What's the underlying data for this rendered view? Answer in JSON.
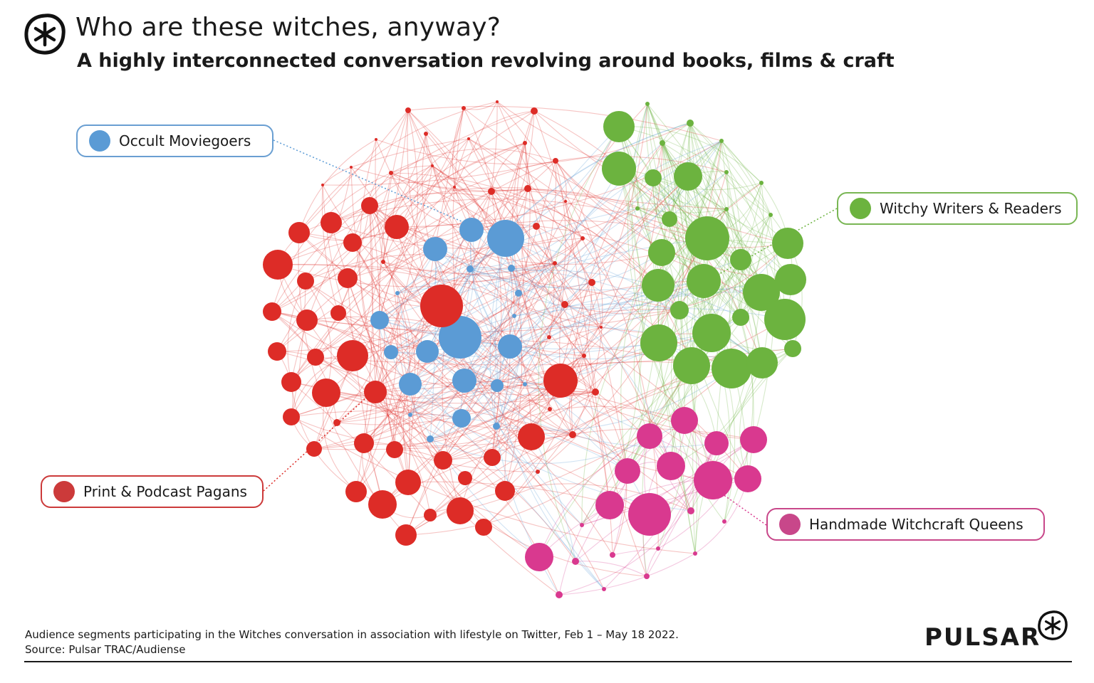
{
  "header": {
    "title": "Who are these witches, anyway?",
    "subtitle": "A highly interconnected conversation revolving around books, films & craft",
    "logo_icon": "pulsar-asterisk-icon"
  },
  "segments": [
    {
      "key": "blue",
      "label": "Occult Moviegoers",
      "color": "#5b9bd5"
    },
    {
      "key": "green",
      "label": "Witchy Writers & Readers",
      "color": "#6cb33f"
    },
    {
      "key": "red",
      "label": "Print & Podcast Pagans",
      "color": "#dd2c27"
    },
    {
      "key": "pink",
      "label": "Handmade Witchcraft Queens",
      "color": "#d9398f"
    }
  ],
  "footer": {
    "note": "Audience segments participating in the Witches conversation in association with lifestyle on Twitter, Feb 1  – May 18 2022.",
    "source": "Source: Pulsar TRAC/Audiense"
  },
  "brand": {
    "name": "PULSAR",
    "icon": "pulsar-asterisk-icon"
  }
}
